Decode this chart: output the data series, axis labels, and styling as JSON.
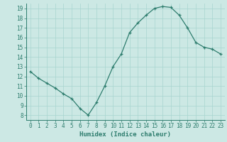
{
  "x": [
    0,
    1,
    2,
    3,
    4,
    5,
    6,
    7,
    8,
    9,
    10,
    11,
    12,
    13,
    14,
    15,
    16,
    17,
    18,
    19,
    20,
    21,
    22,
    23
  ],
  "y": [
    12.5,
    11.8,
    11.3,
    10.8,
    10.2,
    9.7,
    8.7,
    8.0,
    9.3,
    11.0,
    13.0,
    14.3,
    16.5,
    17.5,
    18.3,
    19.0,
    19.2,
    19.1,
    18.3,
    17.0,
    15.5,
    15.0,
    14.8,
    14.3
  ],
  "xlim": [
    -0.5,
    23.5
  ],
  "ylim": [
    7.5,
    19.5
  ],
  "yticks": [
    8,
    9,
    10,
    11,
    12,
    13,
    14,
    15,
    16,
    17,
    18,
    19
  ],
  "xticks": [
    0,
    1,
    2,
    3,
    4,
    5,
    6,
    7,
    8,
    9,
    10,
    11,
    12,
    13,
    14,
    15,
    16,
    17,
    18,
    19,
    20,
    21,
    22,
    23
  ],
  "xlabel": "Humidex (Indice chaleur)",
  "line_color": "#2e7d6e",
  "marker_color": "#2e7d6e",
  "bg_color": "#cce8e4",
  "grid_color": "#a8d4cf",
  "tick_label_fontsize": 5.5,
  "xlabel_fontsize": 6.5
}
